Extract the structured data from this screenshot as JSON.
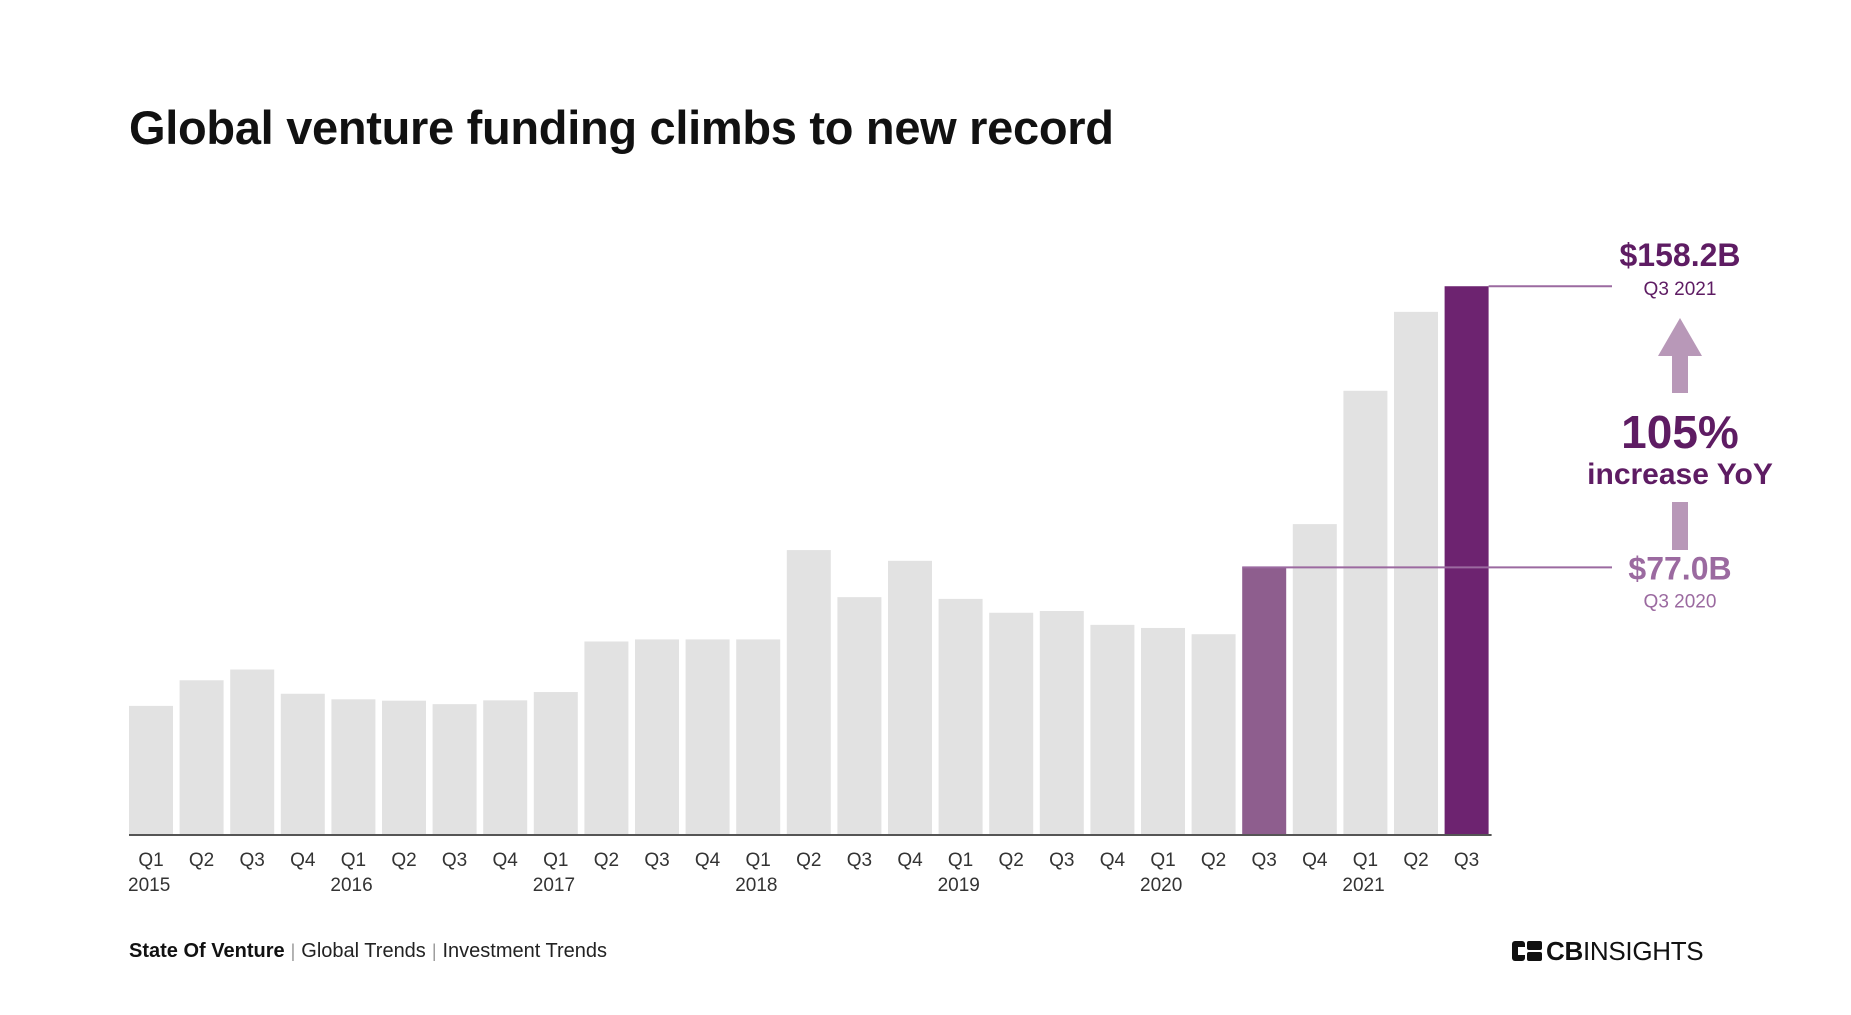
{
  "title": "Global venture funding climbs to new record",
  "colors": {
    "bar_default": "#e2e2e2",
    "bar_q3_2020": "#8e5e8e",
    "bar_q3_2021": "#6d2370",
    "accent_dark": "#5e1c63",
    "accent_mid": "#9b6aa0",
    "arrow": "#b898b8",
    "axis": "#555555"
  },
  "chart_data": {
    "type": "bar",
    "quarter_labels": [
      "Q1",
      "Q2",
      "Q3",
      "Q4",
      "Q1",
      "Q2",
      "Q3",
      "Q4",
      "Q1",
      "Q2",
      "Q3",
      "Q4",
      "Q1",
      "Q2",
      "Q3",
      "Q4",
      "Q1",
      "Q2",
      "Q3",
      "Q4",
      "Q1",
      "Q2",
      "Q3",
      "Q4",
      "Q1",
      "Q2",
      "Q3"
    ],
    "year_labels": [
      "2015",
      "",
      "",
      "",
      "2016",
      "",
      "",
      "",
      "2017",
      "",
      "",
      "",
      "2018",
      "",
      "",
      "",
      "2019",
      "",
      "",
      "",
      "2020",
      "",
      "",
      "",
      "2021",
      "",
      ""
    ],
    "values": [
      37.0,
      44.4,
      47.5,
      40.5,
      38.9,
      38.5,
      37.5,
      38.6,
      41.0,
      55.6,
      56.2,
      56.2,
      56.2,
      82.0,
      68.4,
      78.9,
      67.9,
      63.9,
      64.4,
      60.4,
      59.5,
      57.7,
      77.0,
      89.5,
      128.0,
      150.8,
      158.2
    ],
    "highlight": [
      22,
      26
    ],
    "ylim": [
      0,
      160
    ],
    "grid": false,
    "annotations": {
      "top_value": "$158.2B",
      "top_label": "Q3 2021",
      "change_value": "105%",
      "change_label": "increase YoY",
      "base_value": "$77.0B",
      "base_label": "Q3 2020"
    }
  },
  "footer": {
    "primary": "State Of Venture",
    "links": [
      "Global Trends",
      "Investment Trends"
    ]
  },
  "brand": {
    "name_bold": "CB",
    "name_rest": "INSIGHTS"
  }
}
